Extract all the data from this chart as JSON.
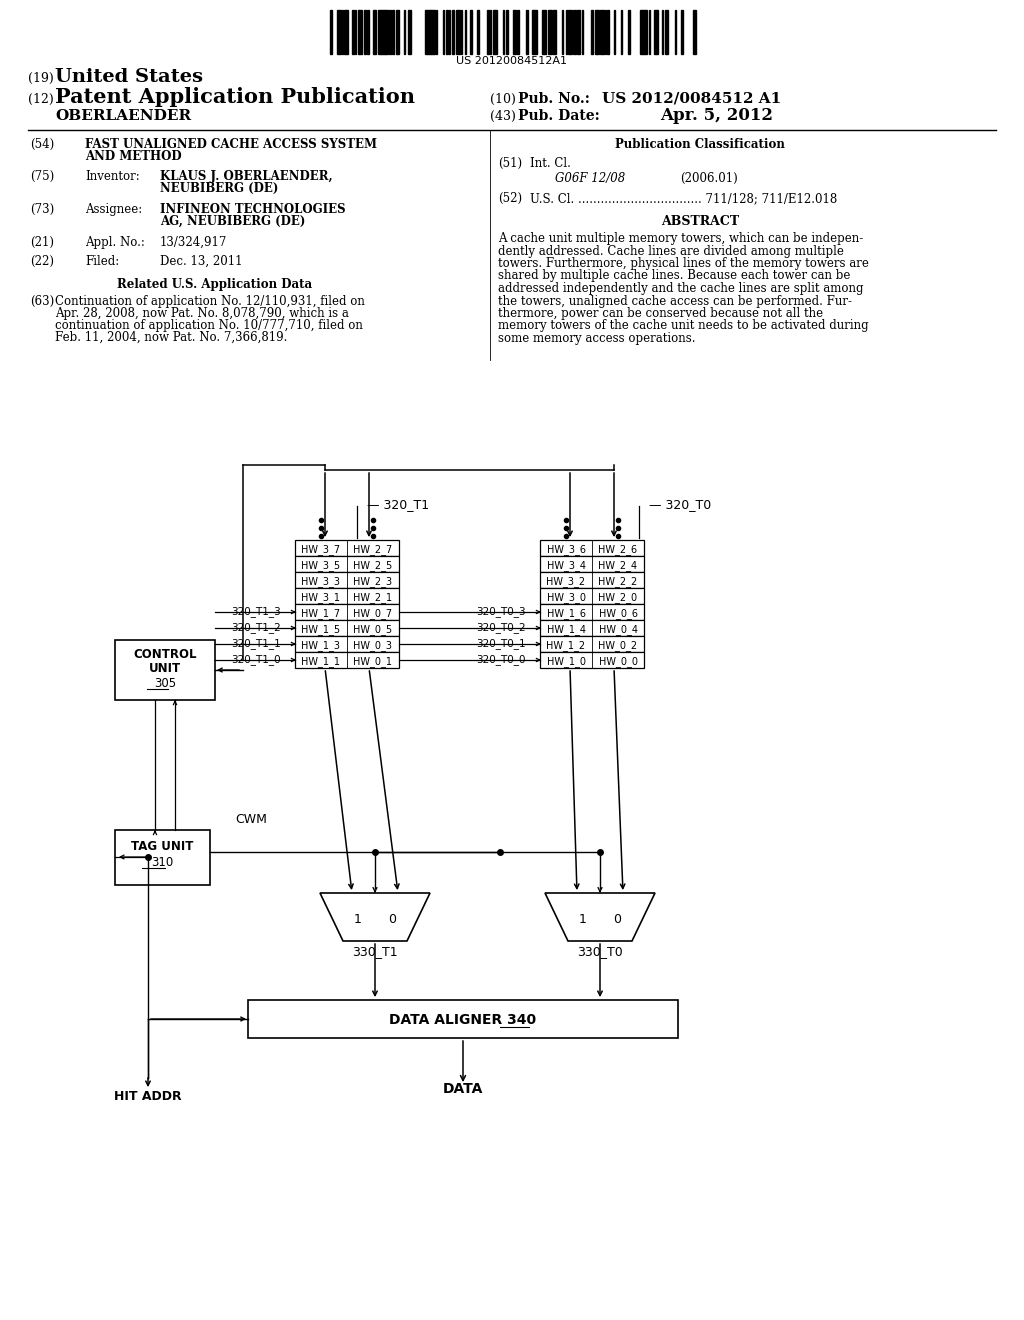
{
  "bg_color": "#ffffff",
  "barcode_text": "US 20120084512A1",
  "T1_rows": [
    [
      "HW_3_7",
      "HW_2_7"
    ],
    [
      "HW_3_5",
      "HW_2_5"
    ],
    [
      "HW_3_3",
      "HW_2_3"
    ],
    [
      "HW_3_1",
      "HW_2_1"
    ],
    [
      "HW_1_7",
      "HW_0_7"
    ],
    [
      "HW_1_5",
      "HW_0_5"
    ],
    [
      "HW_1_3",
      "HW_0_3"
    ],
    [
      "HW_1_1",
      "HW_0_1"
    ]
  ],
  "T0_rows": [
    [
      "HW_3_6",
      "HW_2_6"
    ],
    [
      "HW_3_4",
      "HW_2_4"
    ],
    [
      "HW_3_2",
      "HW_2_2"
    ],
    [
      "HW_3_0",
      "HW_2_0"
    ],
    [
      "HW_1_6",
      "HW_0_6"
    ],
    [
      "HW_1_4",
      "HW_0_4"
    ],
    [
      "HW_1_2",
      "HW_0_2"
    ],
    [
      "HW_1_0",
      "HW_0_0"
    ]
  ],
  "T1_row_labels": [
    "320_T1_3",
    "320_T1_2",
    "320_T1_1",
    "320_T1_0"
  ],
  "T0_row_labels": [
    "320_T0_3",
    "320_T0_2",
    "320_T0_1",
    "320_T0_0"
  ],
  "abstract_text": "A cache unit multiple memory towers, which can be indepen-\ndently addressed. Cache lines are divided among multiple\ntowers. Furthermore, physical lines of the memory towers are\nshared by multiple cache lines. Because each tower can be\naddressed independently and the cache lines are split among\nthe towers, unaligned cache access can be performed. Fur-\nthermore, power can be conserved because not all the\nmemory towers of the cache unit needs to be activated during\nsome memory access operations."
}
